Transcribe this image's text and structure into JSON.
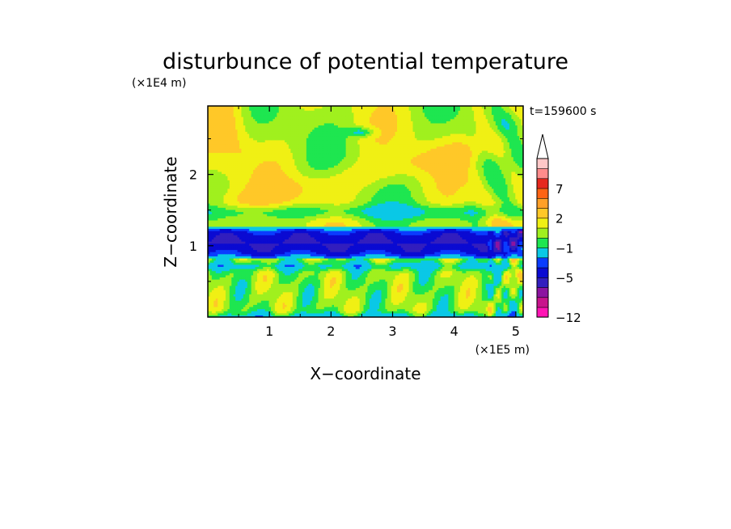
{
  "chart_data": {
    "type": "heatmap",
    "title": "disturbunce of potential temperature",
    "xlabel": "X−coordinate",
    "ylabel": "Z−coordinate",
    "x_unit": "(×1E5 m)",
    "y_unit": "(×1E4 m)",
    "time_label": "t=159600 s",
    "xlim": [
      0,
      5.12
    ],
    "ylim": [
      0,
      2.96
    ],
    "x_ticks": [
      {
        "value": 1,
        "label": "1"
      },
      {
        "value": 2,
        "label": "2"
      },
      {
        "value": 3,
        "label": "3"
      },
      {
        "value": 4,
        "label": "4"
      },
      {
        "value": 5,
        "label": "5"
      }
    ],
    "y_ticks": [
      {
        "value": 1,
        "label": "1"
      },
      {
        "value": 2,
        "label": "2"
      }
    ],
    "colorbar": {
      "levels": [
        -12,
        -10,
        -8,
        -6,
        -5,
        -4,
        -3,
        -1,
        0,
        1,
        2,
        4,
        5,
        7,
        9,
        11
      ],
      "colors": [
        "#ff14b4",
        "#c8148c",
        "#8c14a0",
        "#321ebe",
        "#0a0ad2",
        "#0a3cff",
        "#0ac8e6",
        "#1ee650",
        "#a0f01e",
        "#f0f014",
        "#ffc828",
        "#ffa028",
        "#ff6414",
        "#e6281e",
        "#ff8c8c",
        "#ffc8c8"
      ],
      "labels": [
        {
          "value": -12,
          "label": "−12"
        },
        {
          "value": -5,
          "label": "−5"
        },
        {
          "value": -1,
          "label": "−1"
        },
        {
          "value": 2,
          "label": "2"
        },
        {
          "value": 7,
          "label": "7"
        }
      ],
      "extend_max": true,
      "outline_color": "#000000"
    },
    "grid": false
  }
}
